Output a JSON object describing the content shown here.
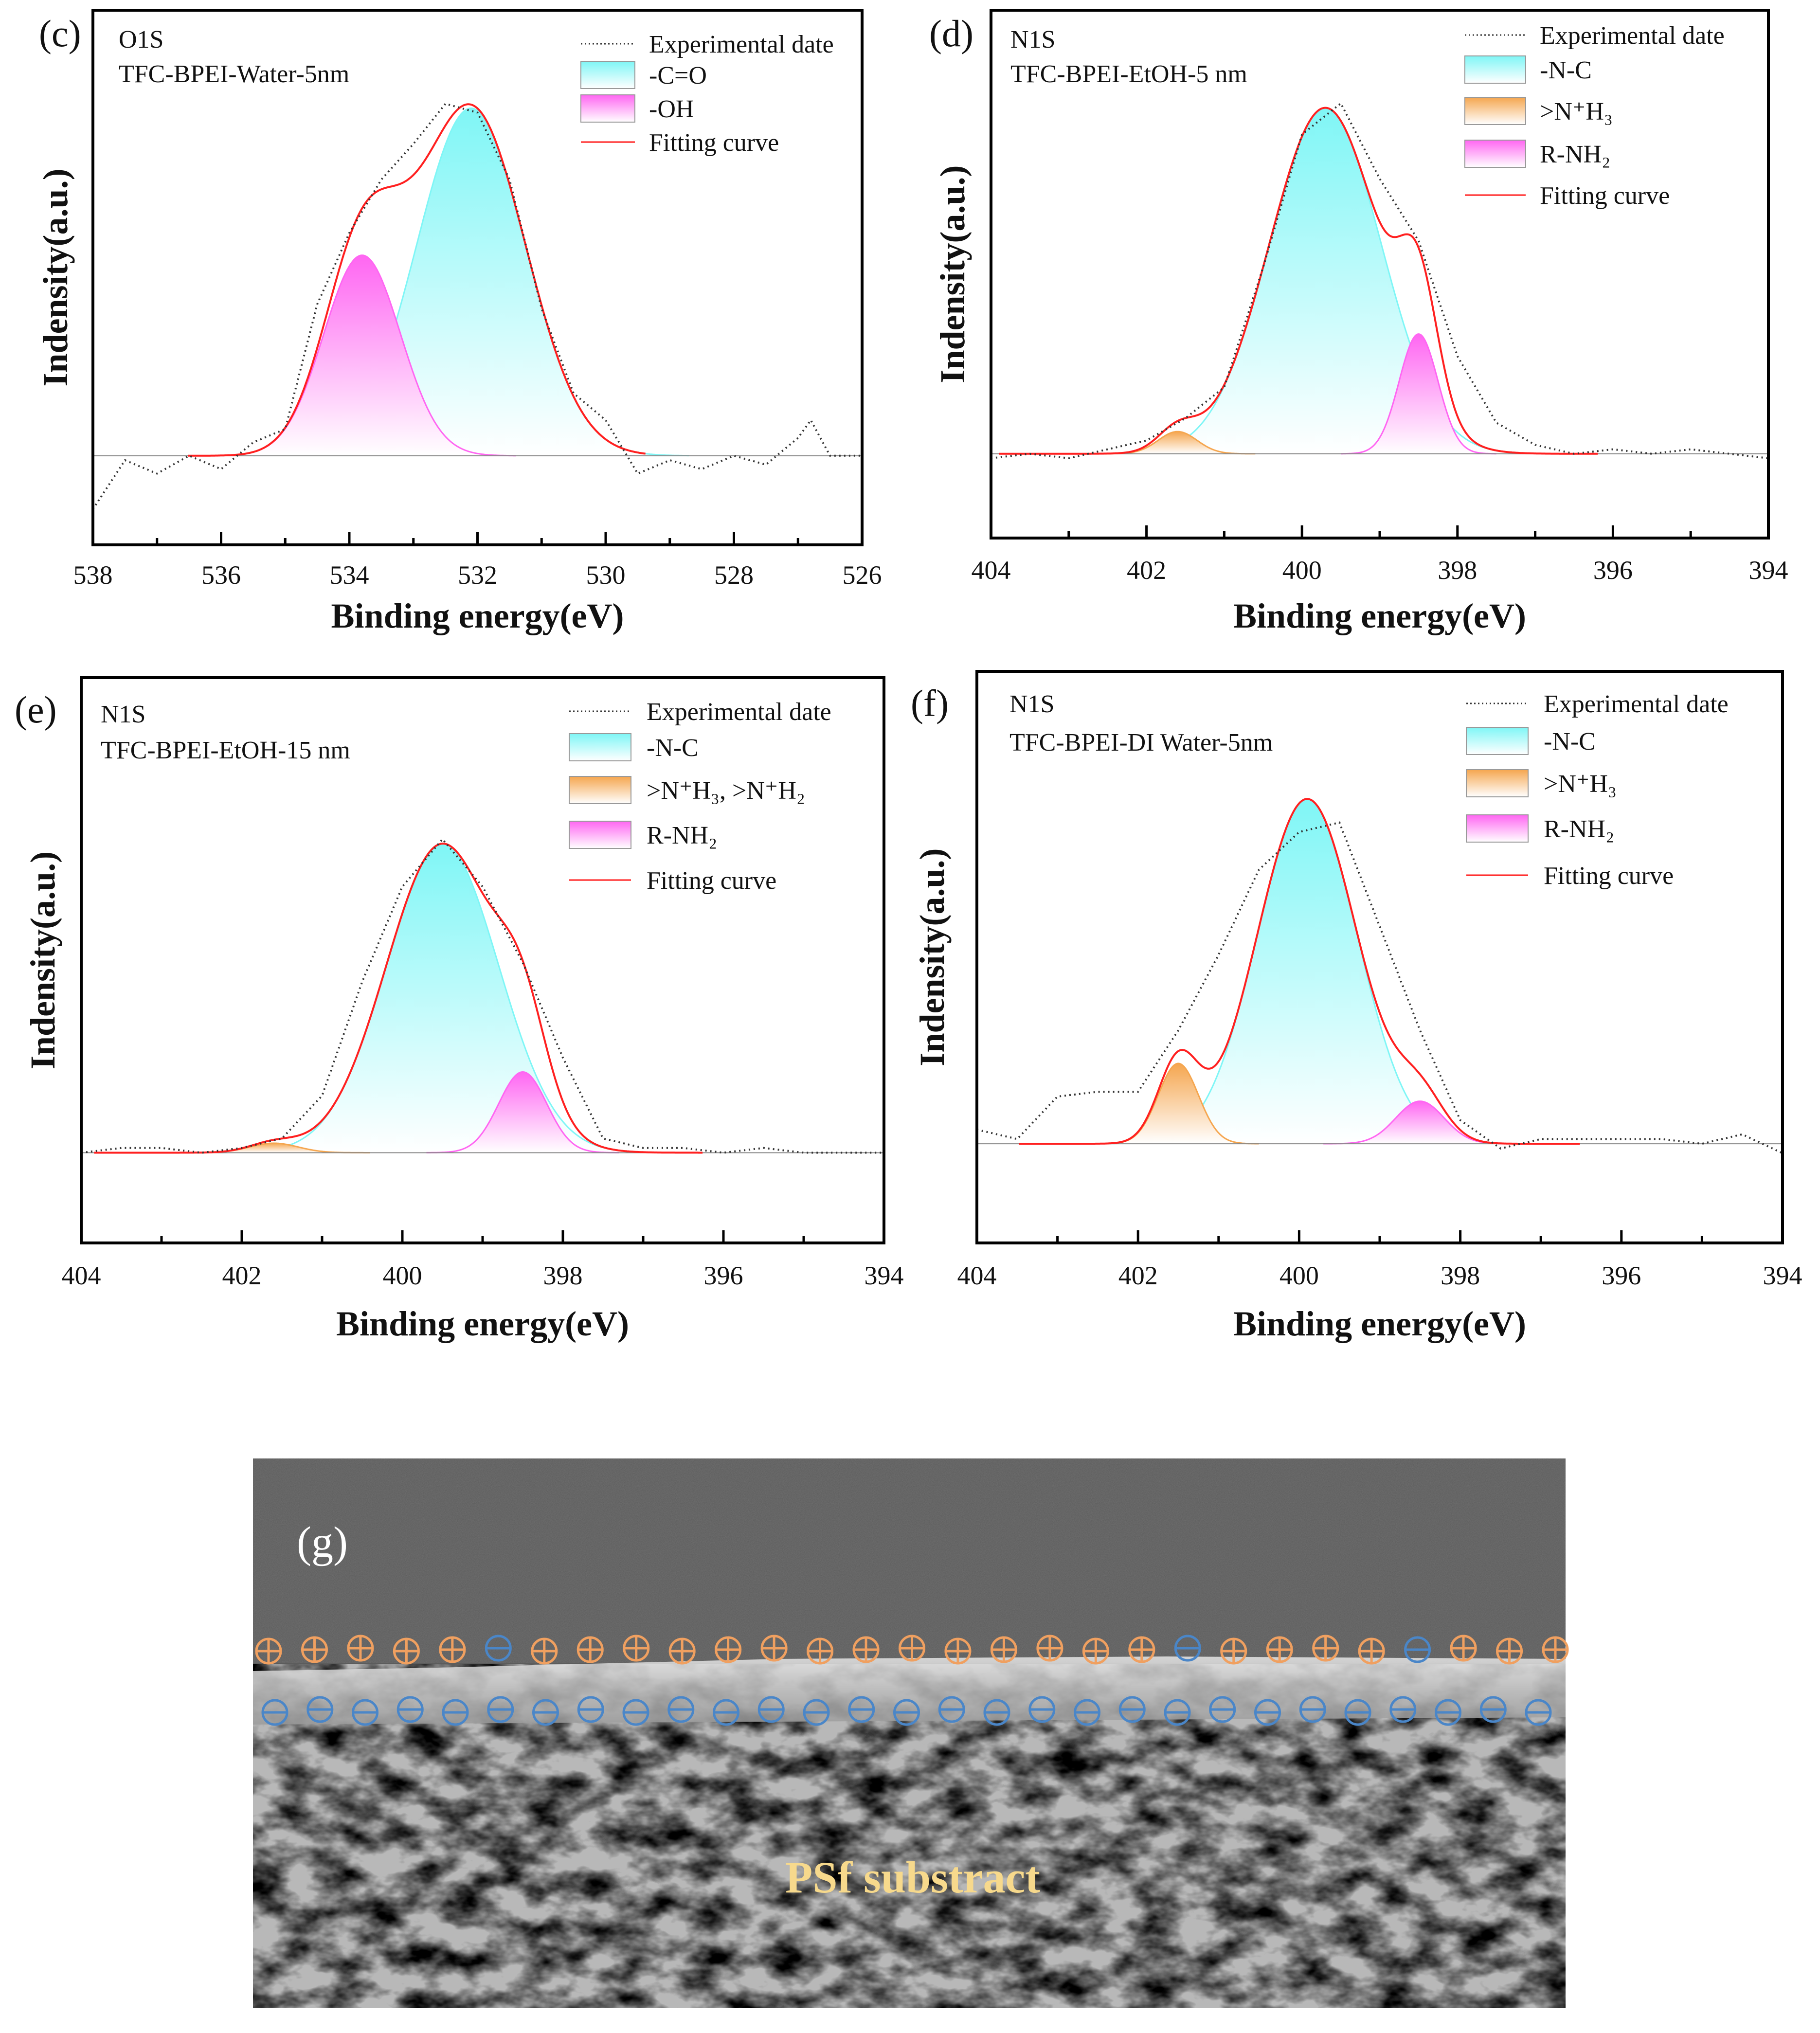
{
  "colors": {
    "cyan": "#7ff6f6",
    "magenta": "#ff66f2",
    "orange": "#f5a64f",
    "fit": "#ff2020",
    "exp": "#333333",
    "plus": "#f0a060",
    "minus": "#4a86c8",
    "sem_label": "#f7d98c"
  },
  "chart_data": [
    {
      "panel": "(c)",
      "type": "line",
      "annotation": [
        "O1S",
        "TFC-BPEI-Water-5nm"
      ],
      "xlabel": "Binding energy(eV)",
      "ylabel": "Indensity(a.u.)",
      "xlim": [
        538,
        526
      ],
      "ylim": [
        -0.2,
        1.0
      ],
      "xticks": [
        "538",
        "536",
        "534",
        "532",
        "530",
        "528",
        "526"
      ],
      "legend": {
        "placement": "top-right",
        "experimental": "Experimental date",
        "fit": "Fitting curve"
      },
      "peaks": [
        {
          "name": "-C=O",
          "center": 532.1,
          "height": 0.78,
          "sigma": 0.85,
          "color": "cyan"
        },
        {
          "name": "-OH",
          "center": 533.8,
          "height": 0.45,
          "sigma": 0.6,
          "color": "magenta"
        }
      ],
      "experimental": [
        [
          538,
          -0.12
        ],
        [
          537.5,
          -0.01
        ],
        [
          537,
          -0.04
        ],
        [
          536.5,
          0.0
        ],
        [
          536,
          -0.03
        ],
        [
          535.5,
          0.03
        ],
        [
          535,
          0.06
        ],
        [
          534.5,
          0.34
        ],
        [
          534,
          0.5
        ],
        [
          533.5,
          0.62
        ],
        [
          533,
          0.7
        ],
        [
          532.5,
          0.79
        ],
        [
          532,
          0.77
        ],
        [
          531.5,
          0.62
        ],
        [
          531,
          0.33
        ],
        [
          530.5,
          0.14
        ],
        [
          530,
          0.08
        ],
        [
          529.5,
          -0.04
        ],
        [
          529,
          -0.01
        ],
        [
          528.5,
          -0.03
        ],
        [
          528,
          0.0
        ],
        [
          527.5,
          -0.02
        ],
        [
          527,
          0.04
        ],
        [
          526.8,
          0.08
        ],
        [
          526.5,
          0.0
        ],
        [
          526,
          0.0
        ]
      ]
    },
    {
      "panel": "(d)",
      "type": "line",
      "annotation": [
        "N1S",
        "TFC-BPEI-EtOH-5 nm"
      ],
      "xlabel": "Binding energy(eV)",
      "ylabel": "Indensity(a.u.)",
      "xlim": [
        404,
        394
      ],
      "ylim": [
        -0.19,
        1.0
      ],
      "xticks": [
        "404",
        "402",
        "400",
        "398",
        "396",
        "394"
      ],
      "legend": {
        "placement": "top-right",
        "experimental": "Experimental date",
        "fit": "Fitting curve"
      },
      "peaks": [
        {
          "name": "-N-C",
          "center": 399.7,
          "height": 0.78,
          "sigma": 0.72,
          "color": "cyan"
        },
        {
          "name": ">N⁺H₃",
          "center": 401.6,
          "height": 0.05,
          "sigma": 0.25,
          "color": "orange"
        },
        {
          "name": "R-NH₂",
          "center": 398.5,
          "height": 0.27,
          "sigma": 0.25,
          "color": "magenta"
        }
      ],
      "experimental": [
        [
          404,
          -0.01
        ],
        [
          403.5,
          0
        ],
        [
          403,
          -0.01
        ],
        [
          402.5,
          0.01
        ],
        [
          402,
          0.03
        ],
        [
          401.5,
          0.08
        ],
        [
          401,
          0.15
        ],
        [
          400.5,
          0.42
        ],
        [
          400,
          0.72
        ],
        [
          399.5,
          0.79
        ],
        [
          399,
          0.62
        ],
        [
          398.5,
          0.48
        ],
        [
          398,
          0.22
        ],
        [
          397.5,
          0.07
        ],
        [
          397,
          0.02
        ],
        [
          396.5,
          0
        ],
        [
          396,
          0.01
        ],
        [
          395.5,
          0
        ],
        [
          395,
          0.01
        ],
        [
          394.5,
          0
        ],
        [
          394,
          -0.01
        ]
      ]
    },
    {
      "panel": "(e)",
      "type": "line",
      "annotation": [
        "N1S",
        "TFC-BPEI-EtOH-15 nm"
      ],
      "xlabel": "Binding energy(eV)",
      "ylabel": "Indensity(a.u.)",
      "xlim": [
        404,
        394
      ],
      "ylim": [
        -0.19,
        1.0
      ],
      "xticks": [
        "404",
        "402",
        "400",
        "398",
        "396",
        "394"
      ],
      "legend": {
        "placement": "top-right",
        "experimental": "Experimental date",
        "fit": "Fitting curve"
      },
      "peaks": [
        {
          "name": "-N-C",
          "center": 399.5,
          "height": 0.65,
          "sigma": 0.7,
          "color": "cyan"
        },
        {
          "name": ">N⁺H₃, >N⁺H₂",
          "center": 401.6,
          "height": 0.02,
          "sigma": 0.3,
          "color": "orange"
        },
        {
          "name": "R-NH₂",
          "center": 398.5,
          "height": 0.17,
          "sigma": 0.3,
          "color": "magenta"
        }
      ],
      "experimental": [
        [
          404,
          0
        ],
        [
          403.5,
          0.01
        ],
        [
          403,
          0.01
        ],
        [
          402.5,
          0
        ],
        [
          402,
          0.01
        ],
        [
          401.5,
          0.03
        ],
        [
          401,
          0.12
        ],
        [
          400.5,
          0.36
        ],
        [
          400,
          0.56
        ],
        [
          399.5,
          0.66
        ],
        [
          399,
          0.56
        ],
        [
          398.5,
          0.4
        ],
        [
          398,
          0.2
        ],
        [
          397.5,
          0.03
        ],
        [
          397,
          0.01
        ],
        [
          396.5,
          0.01
        ],
        [
          396,
          0
        ],
        [
          395.5,
          0.01
        ],
        [
          395,
          0
        ],
        [
          394.5,
          0
        ],
        [
          394,
          0
        ]
      ]
    },
    {
      "panel": "(f)",
      "type": "line",
      "annotation": [
        "N1S",
        "TFC-BPEI-DI Water-5nm"
      ],
      "xlabel": "Binding energy(eV)",
      "ylabel": "Indensity(a.u.)",
      "xlim": [
        404,
        394
      ],
      "ylim": [
        -0.21,
        1.0
      ],
      "xticks": [
        "404",
        "402",
        "400",
        "398",
        "396",
        "394"
      ],
      "legend": {
        "placement": "top-right",
        "experimental": "Experimental date",
        "fit": "Fitting curve"
      },
      "peaks": [
        {
          "name": "-N-C",
          "center": 399.9,
          "height": 0.73,
          "sigma": 0.62,
          "color": "cyan"
        },
        {
          "name": ">N⁺H₃",
          "center": 401.5,
          "height": 0.17,
          "sigma": 0.25,
          "color": "orange"
        },
        {
          "name": "R-NH₂",
          "center": 398.5,
          "height": 0.09,
          "sigma": 0.3,
          "color": "magenta"
        }
      ],
      "experimental": [
        [
          404,
          0.03
        ],
        [
          403.5,
          0.01
        ],
        [
          403,
          0.1
        ],
        [
          402.5,
          0.11
        ],
        [
          402,
          0.11
        ],
        [
          401.5,
          0.24
        ],
        [
          401,
          0.4
        ],
        [
          400.5,
          0.58
        ],
        [
          400,
          0.66
        ],
        [
          399.5,
          0.68
        ],
        [
          399,
          0.46
        ],
        [
          398.5,
          0.24
        ],
        [
          398,
          0.05
        ],
        [
          397.5,
          -0.01
        ],
        [
          397,
          0.01
        ],
        [
          396.5,
          0.01
        ],
        [
          396,
          0.01
        ],
        [
          395.5,
          0.01
        ],
        [
          395,
          0
        ],
        [
          394.5,
          0.02
        ],
        [
          394,
          -0.02
        ]
      ]
    }
  ],
  "sem": {
    "panel": "(g)",
    "label": "PSf substract",
    "top_charges": [
      "+",
      "+",
      "+",
      "+",
      "+",
      "-",
      "+",
      "+",
      "+",
      "+",
      "+",
      "+",
      "+",
      "+",
      "+",
      "+",
      "+",
      "+",
      "+",
      "+",
      "-",
      "+",
      "+",
      "+",
      "+",
      "-",
      "+",
      "+",
      "+"
    ],
    "bottom_charges": [
      "-",
      "-",
      "-",
      "-",
      "-",
      "-",
      "-",
      "-",
      "-",
      "-",
      "-",
      "-",
      "-",
      "-",
      "-",
      "-",
      "-",
      "-",
      "-",
      "-",
      "-",
      "-",
      "-",
      "-",
      "-",
      "-",
      "-",
      "-",
      "-"
    ]
  }
}
